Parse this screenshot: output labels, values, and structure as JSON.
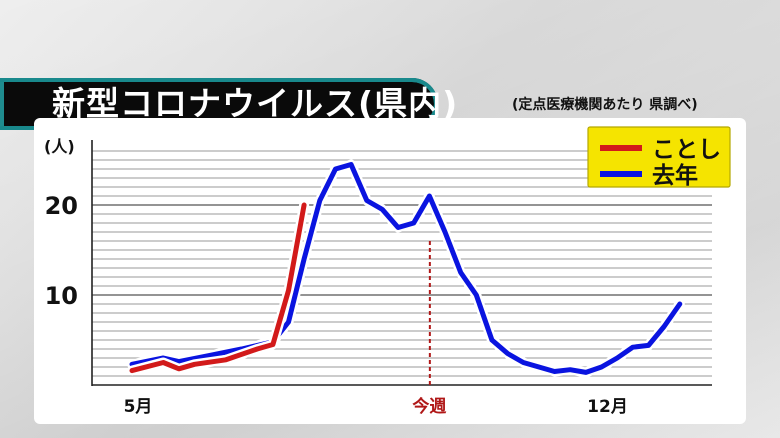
{
  "title": "新型コロナウイルス(県内)",
  "source_note": "(定点医療機関あたり 県調べ)",
  "colors": {
    "this_year": "#d21a1a",
    "last_year": "#0a14e0",
    "legend_bg": "#f5e400",
    "title_bg": "#0a0a0a",
    "title_border": "#1f8c8f",
    "this_week_line": "#b01818"
  },
  "chart_data": {
    "type": "line",
    "title": "新型コロナウイルス(県内)",
    "ylabel": "(人)",
    "ylim": [
      0,
      27
    ],
    "yticks": [
      10,
      20
    ],
    "ytick_labels": [
      "10",
      "20"
    ],
    "grid": true,
    "legend_position": "top-right",
    "xlabels": [
      {
        "text": "5月",
        "week": 0
      },
      {
        "text": "今週",
        "week": 19
      },
      {
        "text": "12月",
        "week": 30
      }
    ],
    "this_week_marker": {
      "label": "今週",
      "week": 19
    },
    "series": [
      {
        "name": "去年",
        "color": "#0a14e0",
        "points": [
          [
            0,
            2.3
          ],
          [
            2,
            3.0
          ],
          [
            3,
            2.6
          ],
          [
            5,
            3.3
          ],
          [
            7,
            4.0
          ],
          [
            9,
            4.8
          ],
          [
            10,
            7.0
          ],
          [
            11,
            14.0
          ],
          [
            12,
            20.5
          ],
          [
            13,
            24.0
          ],
          [
            14,
            24.5
          ],
          [
            15,
            20.5
          ],
          [
            16,
            19.5
          ],
          [
            17,
            17.5
          ],
          [
            18,
            18.0
          ],
          [
            19,
            21.0
          ],
          [
            20,
            17.0
          ],
          [
            21,
            12.5
          ],
          [
            22,
            10.0
          ],
          [
            23,
            5.0
          ],
          [
            24,
            3.5
          ],
          [
            25,
            2.5
          ],
          [
            26,
            2.0
          ],
          [
            27,
            1.5
          ],
          [
            28,
            1.7
          ],
          [
            29,
            1.4
          ],
          [
            30,
            2.0
          ],
          [
            31,
            3.0
          ],
          [
            32,
            4.2
          ],
          [
            33,
            4.4
          ],
          [
            34,
            6.5
          ],
          [
            35,
            9.0
          ]
        ]
      },
      {
        "name": "ことし",
        "color": "#d21a1a",
        "points": [
          [
            0,
            1.6
          ],
          [
            2,
            2.5
          ],
          [
            3,
            1.8
          ],
          [
            4,
            2.3
          ],
          [
            6,
            2.8
          ],
          [
            8,
            4.0
          ],
          [
            9,
            4.5
          ],
          [
            10,
            10.5
          ],
          [
            11,
            20.0
          ]
        ]
      }
    ]
  }
}
